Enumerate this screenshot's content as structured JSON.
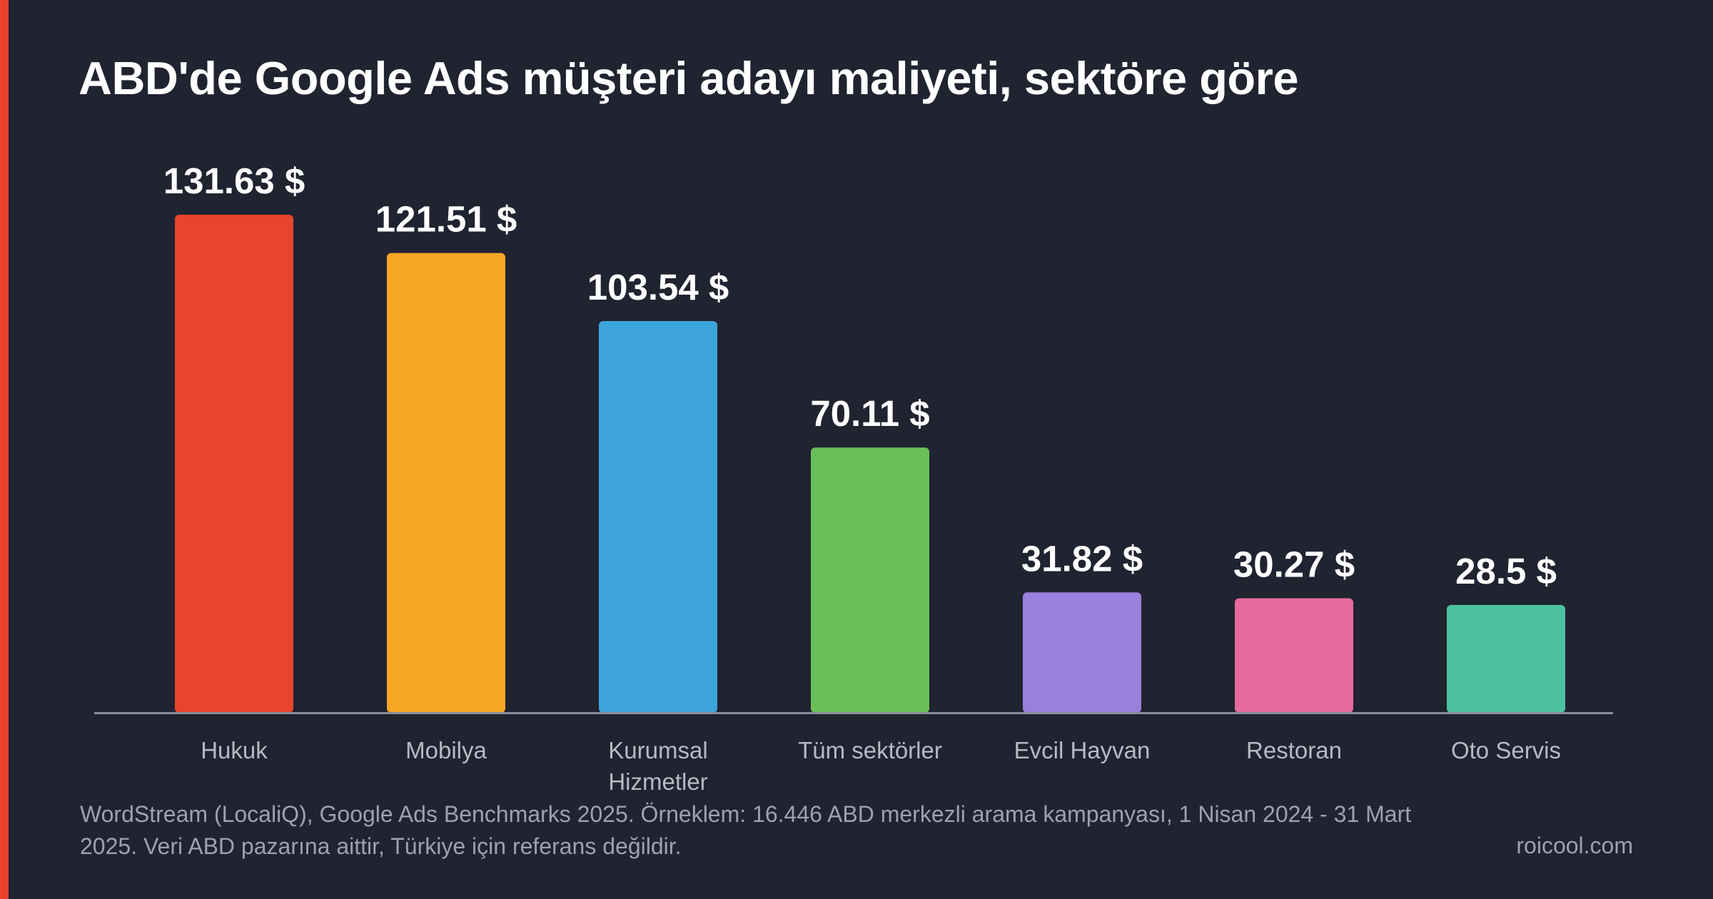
{
  "chart_data": {
    "type": "bar",
    "title": "ABD'de Google Ads müşteri adayı maliyeti, sektöre göre",
    "categories": [
      [
        "Hukuk"
      ],
      [
        "Mobilya"
      ],
      [
        "Kurumsal",
        "Hizmetler"
      ],
      [
        "Tüm sektörler"
      ],
      [
        "Evcil Hayvan"
      ],
      [
        "Restoran"
      ],
      [
        "Oto Servis"
      ]
    ],
    "values": [
      131.63,
      121.51,
      103.54,
      70.11,
      31.82,
      30.27,
      28.5
    ],
    "value_labels": [
      "131.63 $",
      "121.51 $",
      "103.54 $",
      "70.11 $",
      "31.82 $",
      "30.27 $",
      "28.5 $"
    ],
    "colors": [
      "#e8452d",
      "#f5a623",
      "#3da5d9",
      "#6abf59",
      "#9b7fdd",
      "#e56b9e",
      "#4cc2a0"
    ],
    "ylim": [
      0,
      131.63
    ],
    "grid": false,
    "legend": "none"
  },
  "footer": {
    "source": "WordStream (LocaliQ), Google Ads Benchmarks 2025. Örneklem: 16.446 ABD merkezli arama kampanyası, 1 Nisan 2024 - 31 Mart 2025. Veri ABD pazarına aittir, Türkiye için referans değildir.",
    "brand": "roicool.com"
  },
  "theme": {
    "background": "#202330",
    "accent": "#e8412c",
    "axis": "#8a8e99"
  }
}
